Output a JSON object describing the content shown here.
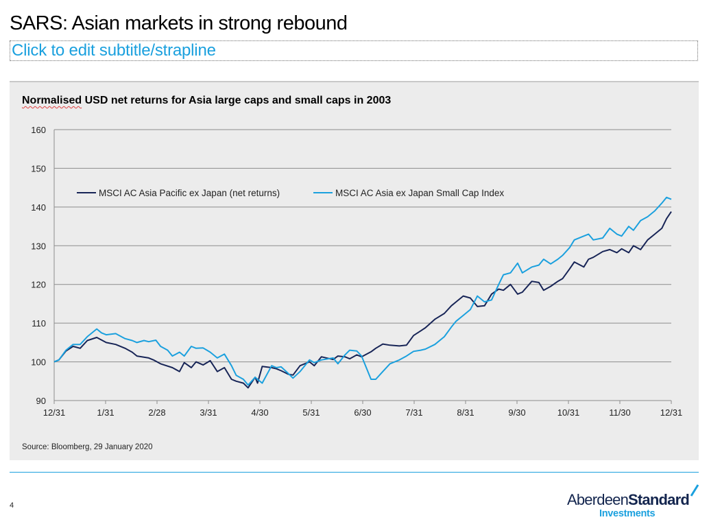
{
  "slide": {
    "title": "SARS: Asian markets in strong rebound",
    "subtitle": "Click to edit subtitle/strapline",
    "page_number": "4"
  },
  "source": "Source: Bloomberg, 29 January 2020",
  "logo": {
    "word_light": "Aberdeen",
    "word_bold": "Standard",
    "sub": "Investments"
  },
  "colors": {
    "large_caps": "#172456",
    "small_caps": "#1aa0de",
    "panel": "#ececec",
    "grid": "#8c8c8c"
  },
  "chart_data": {
    "type": "line",
    "title_prefix": "Normalised",
    "title_rest": " USD net returns for Asia large caps and small caps in 2003",
    "xlabel": "",
    "ylabel": "",
    "ylim": [
      90,
      160
    ],
    "yticks": [
      90,
      100,
      110,
      120,
      130,
      140,
      150,
      160
    ],
    "xticks": [
      "12/31",
      "1/31",
      "2/28",
      "3/31",
      "4/30",
      "5/31",
      "6/30",
      "7/31",
      "8/31",
      "9/30",
      "10/31",
      "11/30",
      "12/31"
    ],
    "x_count": 261,
    "grid": "horizontal",
    "legend_position": "top-left",
    "series": [
      {
        "name": "MSCI AC Asia Pacific ex Japan (net returns)",
        "key": "large_caps",
        "x": [
          0,
          2,
          5,
          8,
          11,
          14,
          18,
          22,
          26,
          30,
          33,
          35,
          40,
          42,
          45,
          50,
          53,
          55,
          58,
          60,
          63,
          66,
          69,
          72,
          75,
          77,
          80,
          82,
          85,
          86,
          88,
          92,
          94,
          96,
          99,
          101,
          104,
          108,
          110,
          113,
          118,
          120,
          123,
          125,
          128,
          130,
          134,
          136,
          139,
          142,
          146,
          149,
          152,
          155,
          157,
          161,
          165,
          168,
          170,
          173,
          176,
          179,
          182,
          185,
          188,
          190,
          193,
          196,
          198,
          202,
          205,
          207,
          210,
          213,
          215,
          218,
          220,
          224,
          226,
          228,
          232,
          235,
          238,
          240,
          243,
          245,
          248,
          251,
          254,
          257,
          259,
          261
        ],
        "values": [
          100,
          100.5,
          102.8,
          104,
          103.5,
          105.5,
          106.3,
          105,
          104.5,
          103.5,
          102.5,
          101.5,
          101,
          100.5,
          99.5,
          98.5,
          97.5,
          99.8,
          98.5,
          100,
          99.2,
          100.3,
          97.5,
          98.5,
          95.5,
          95,
          94.5,
          93.3,
          96,
          94.5,
          98.8,
          98.5,
          98.2,
          97.7,
          96.8,
          96.6,
          99,
          100,
          99,
          101.3,
          100.6,
          101.5,
          101.3,
          100.8,
          101.8,
          101.3,
          102.6,
          103.5,
          104.6,
          104.3,
          104.1,
          104.3,
          106.8,
          108,
          108.8,
          111,
          112.5,
          114.5,
          115.5,
          117,
          116.5,
          114.3,
          114.5,
          117.5,
          118.8,
          118.5,
          120,
          117.5,
          118,
          120.8,
          120.5,
          118.5,
          119.5,
          120.8,
          121.5,
          124,
          125.8,
          124.5,
          126.5,
          127,
          128.5,
          129,
          128.2,
          129.2,
          128.2,
          130,
          129,
          131.5,
          133,
          134.5,
          137,
          138.8
        ]
      },
      {
        "name": "MSCI AC Asia ex Japan Small Cap Index",
        "key": "small_caps",
        "x": [
          0,
          2,
          5,
          8,
          11,
          14,
          18,
          20,
          22,
          26,
          30,
          33,
          35,
          38,
          40,
          43,
          45,
          48,
          50,
          53,
          55,
          58,
          60,
          63,
          66,
          69,
          72,
          75,
          77,
          80,
          82,
          85,
          88,
          92,
          94,
          96,
          99,
          101,
          104,
          108,
          110,
          113,
          118,
          120,
          123,
          125,
          128,
          130,
          134,
          136,
          139,
          142,
          146,
          149,
          152,
          155,
          157,
          161,
          165,
          168,
          170,
          173,
          176,
          179,
          182,
          185,
          188,
          190,
          193,
          196,
          198,
          202,
          205,
          207,
          210,
          213,
          215,
          218,
          220,
          224,
          226,
          228,
          232,
          235,
          238,
          240,
          243,
          245,
          248,
          251,
          254,
          257,
          259,
          261
        ],
        "values": [
          100,
          100.5,
          103,
          104.5,
          104.5,
          106.5,
          108.5,
          107.5,
          107,
          107.3,
          106,
          105.5,
          105,
          105.5,
          105.2,
          105.6,
          104,
          103,
          101.5,
          102.5,
          101.5,
          104,
          103.5,
          103.6,
          102.5,
          101,
          102,
          99,
          96.5,
          95.5,
          94,
          96,
          94.5,
          99,
          98.5,
          98.7,
          97,
          95.8,
          97.5,
          100.5,
          99.8,
          100.5,
          101,
          99.5,
          101.8,
          103,
          102.8,
          101.5,
          95.5,
          95.5,
          97.5,
          99.5,
          100.5,
          101.5,
          102.7,
          103,
          103.3,
          104.5,
          106.5,
          109,
          110.5,
          112,
          113.5,
          117,
          115.5,
          116,
          120,
          122.5,
          123,
          125.5,
          123,
          124.5,
          125,
          126.5,
          125.3,
          126.5,
          127.5,
          129.5,
          131.5,
          132.5,
          133,
          131.5,
          132,
          134.5,
          133,
          132.5,
          135,
          134,
          136.5,
          137.5,
          139,
          141,
          142.5,
          142
        ]
      }
    ]
  }
}
